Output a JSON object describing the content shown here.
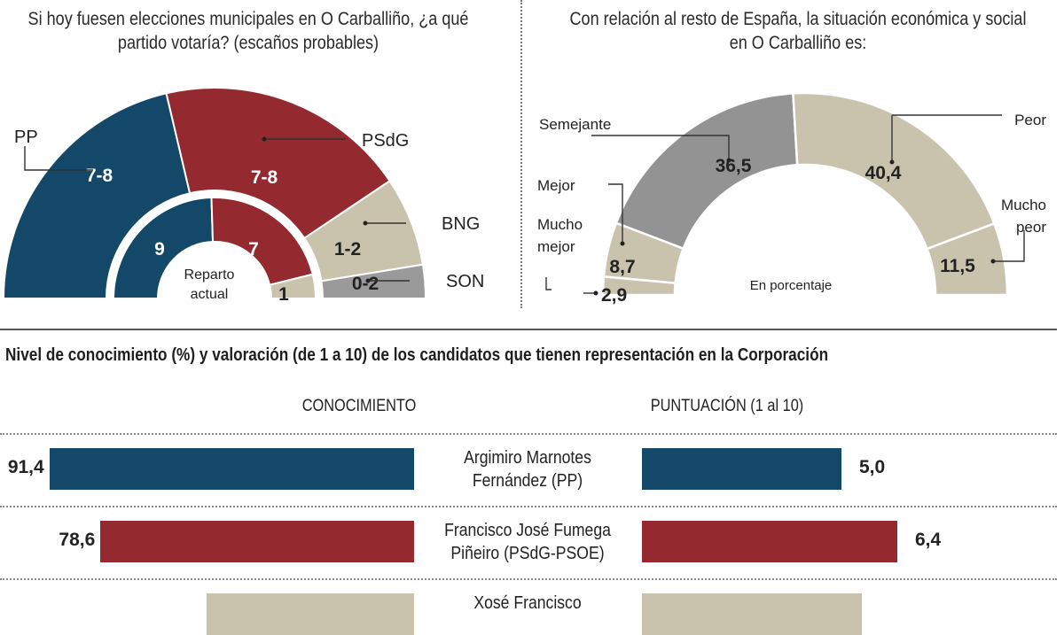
{
  "colors": {
    "pp": "#134868",
    "psdg": "#942a30",
    "bng": "#c9c2ad",
    "son": "#9a9a9a",
    "semejante": "#939393",
    "beige": "#c9c2ad"
  },
  "chart_data": [
    {
      "type": "pie",
      "variant": "semicircle-parliament",
      "title": "Si hoy fuesen elecciones municipales en O Carballiño, ¿a qué partido votaría? (escaños probables)",
      "outer_ring": {
        "name": "Escaños probables",
        "slices": [
          {
            "party": "PP",
            "label": "7-8",
            "seats": 7.5,
            "color": "#134868"
          },
          {
            "party": "PSdG",
            "label": "7-8",
            "seats": 7.5,
            "color": "#942a30"
          },
          {
            "party": "BNG",
            "label": "1-2",
            "seats": 1.5,
            "color": "#c9c2ad"
          },
          {
            "party": "SON",
            "label": "0-2",
            "seats": 1.0,
            "color": "#9a9a9a"
          }
        ]
      },
      "inner_ring": {
        "name": "Reparto actual",
        "center_label": "Reparto actual",
        "slices": [
          {
            "party": "PP",
            "label": "9",
            "seats": 9,
            "color": "#134868"
          },
          {
            "party": "PSdG",
            "label": "7",
            "seats": 7,
            "color": "#942a30"
          },
          {
            "party": "BNG",
            "label": "1",
            "seats": 1,
            "color": "#c9c2ad"
          }
        ]
      }
    },
    {
      "type": "pie",
      "variant": "semicircle-donut",
      "title": "Con relación al resto de España, la situación económica y social en  O Carballiño es:",
      "center_label": "En porcentaje",
      "unit": "%",
      "slices": [
        {
          "label": "Mucho mejor",
          "value": 2.9,
          "display": "2,9",
          "color": "#c9c2ad"
        },
        {
          "label": "Mejor",
          "value": 8.7,
          "display": "8,7",
          "color": "#c9c2ad"
        },
        {
          "label": "Semejante",
          "value": 36.5,
          "display": "36,5",
          "color": "#939393"
        },
        {
          "label": "Peor",
          "value": 40.4,
          "display": "40,4",
          "color": "#c9c2ad"
        },
        {
          "label": "Mucho peor",
          "value": 11.5,
          "display": "11,5",
          "color": "#c9c2ad"
        }
      ]
    },
    {
      "type": "bar",
      "orientation": "horizontal",
      "title": "Nivel de conocimiento (%) y valoración (de 1 a 10) de los candidatos que tienen representación en la Corporación",
      "columns": {
        "left": "CONOCIMIENTO",
        "right": "PUNTUACIÓN (1 al 10)"
      },
      "rows": [
        {
          "name_line1": "Argimiro Marnotes",
          "name_line2": "Fernández (PP)",
          "conocimiento": 91.4,
          "conocimiento_label": "91,4",
          "puntuacion": 5.0,
          "puntuacion_label": "5,0",
          "color": "#134868"
        },
        {
          "name_line1": "Francisco José Fumega",
          "name_line2": "Piñeiro (PSdG-PSOE)",
          "conocimiento": 78.6,
          "conocimiento_label": "78,6",
          "puntuacion": 6.4,
          "puntuacion_label": "6,4",
          "color": "#942a30"
        },
        {
          "name_line1": "Xosé Francisco",
          "name_line2": "",
          "conocimiento": 52,
          "conocimiento_label": "",
          "puntuacion": 5.5,
          "puntuacion_label": "",
          "color": "#c9c2ad"
        }
      ]
    }
  ]
}
